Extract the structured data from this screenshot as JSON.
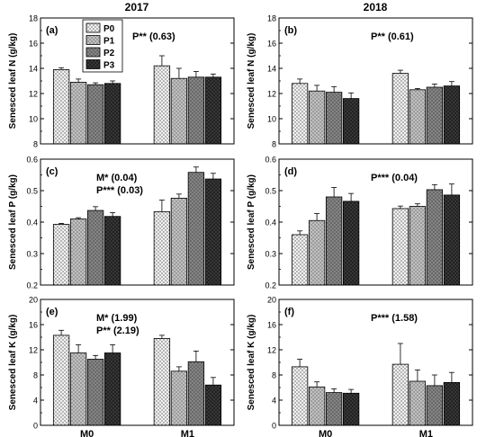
{
  "figure": {
    "column_titles": [
      "2017",
      "2018"
    ]
  },
  "legend": {
    "entries": [
      "P0",
      "P1",
      "P2",
      "P3"
    ]
  },
  "chart_data": [
    {
      "type": "bar",
      "panel": "(a)",
      "year": "2017",
      "ylabel": "Senesced leaf N (g/kg)",
      "ylim": [
        8,
        18
      ],
      "yticks": [
        "8",
        "10",
        "12",
        "14",
        "16",
        "18"
      ],
      "categories": [
        "M0",
        "M1"
      ],
      "show_category_labels": false,
      "series": [
        {
          "name": "P0",
          "values": [
            13.9,
            14.2
          ],
          "errors": [
            0.15,
            0.8
          ]
        },
        {
          "name": "P1",
          "values": [
            12.9,
            13.2
          ],
          "errors": [
            0.25,
            0.8
          ]
        },
        {
          "name": "P2",
          "values": [
            12.7,
            13.3
          ],
          "errors": [
            0.15,
            0.45
          ]
        },
        {
          "name": "P3",
          "values": [
            12.8,
            13.3
          ],
          "errors": [
            0.2,
            0.25
          ]
        }
      ],
      "annotations": [
        "P** (0.63)"
      ],
      "show_legend": true
    },
    {
      "type": "bar",
      "panel": "(b)",
      "year": "2018",
      "ylabel": "Senesced leaf N (g/kg)",
      "ylim": [
        8,
        18
      ],
      "yticks": [
        "8",
        "10",
        "12",
        "14",
        "16",
        "18"
      ],
      "categories": [
        "M0",
        "M1"
      ],
      "show_category_labels": false,
      "series": [
        {
          "name": "P0",
          "values": [
            12.8,
            13.6
          ],
          "errors": [
            0.35,
            0.25
          ]
        },
        {
          "name": "P1",
          "values": [
            12.2,
            12.3
          ],
          "errors": [
            0.45,
            0.1
          ]
        },
        {
          "name": "P2",
          "values": [
            12.1,
            12.5
          ],
          "errors": [
            0.45,
            0.25
          ]
        },
        {
          "name": "P3",
          "values": [
            11.6,
            12.6
          ],
          "errors": [
            0.45,
            0.35
          ]
        }
      ],
      "annotations": [
        "P** (0.61)"
      ],
      "show_legend": false
    },
    {
      "type": "bar",
      "panel": "(c)",
      "year": "2017",
      "ylabel": "Senesced leaf P (g/kg)",
      "ylim": [
        0.2,
        0.6
      ],
      "yticks": [
        "0.2",
        "0.3",
        "0.4",
        "0.5",
        "0.6"
      ],
      "categories": [
        "M0",
        "M1"
      ],
      "show_category_labels": false,
      "series": [
        {
          "name": "P0",
          "values": [
            0.393,
            0.433
          ],
          "errors": [
            0.003,
            0.037
          ]
        },
        {
          "name": "P1",
          "values": [
            0.41,
            0.476
          ],
          "errors": [
            0.004,
            0.013
          ]
        },
        {
          "name": "P2",
          "values": [
            0.437,
            0.558
          ],
          "errors": [
            0.012,
            0.017
          ]
        },
        {
          "name": "P3",
          "values": [
            0.418,
            0.537
          ],
          "errors": [
            0.012,
            0.018
          ]
        }
      ],
      "annotations": [
        "M* (0.04)",
        "P*** (0.03)"
      ],
      "show_legend": false
    },
    {
      "type": "bar",
      "panel": "(d)",
      "year": "2018",
      "ylabel": "Senesced leaf P (g/kg)",
      "ylim": [
        0.2,
        0.6
      ],
      "yticks": [
        "0.2",
        "0.3",
        "0.4",
        "0.5",
        "0.6"
      ],
      "categories": [
        "M0",
        "M1"
      ],
      "show_category_labels": false,
      "series": [
        {
          "name": "P0",
          "values": [
            0.36,
            0.443
          ],
          "errors": [
            0.012,
            0.008
          ]
        },
        {
          "name": "P1",
          "values": [
            0.405,
            0.45
          ],
          "errors": [
            0.022,
            0.008
          ]
        },
        {
          "name": "P2",
          "values": [
            0.48,
            0.503
          ],
          "errors": [
            0.03,
            0.016
          ]
        },
        {
          "name": "P3",
          "values": [
            0.466,
            0.486
          ],
          "errors": [
            0.025,
            0.035
          ]
        }
      ],
      "annotations": [
        "P*** (0.04)"
      ],
      "show_legend": false
    },
    {
      "type": "bar",
      "panel": "(e)",
      "year": "2017",
      "ylabel": "Senesced leaf K (g/kg)",
      "ylim": [
        0,
        20
      ],
      "yticks": [
        "0",
        "4",
        "8",
        "12",
        "16",
        "20"
      ],
      "categories": [
        "M0",
        "M1"
      ],
      "show_category_labels": true,
      "series": [
        {
          "name": "P0",
          "values": [
            14.3,
            13.8
          ],
          "errors": [
            0.8,
            0.5
          ]
        },
        {
          "name": "P1",
          "values": [
            11.5,
            8.6
          ],
          "errors": [
            1.3,
            0.7
          ]
        },
        {
          "name": "P2",
          "values": [
            10.5,
            10.1
          ],
          "errors": [
            0.6,
            1.7
          ]
        },
        {
          "name": "P3",
          "values": [
            11.5,
            6.4
          ],
          "errors": [
            1.3,
            1.2
          ]
        }
      ],
      "annotations": [
        "M* (1.99)",
        "P** (2.19)"
      ],
      "show_legend": false
    },
    {
      "type": "bar",
      "panel": "(f)",
      "year": "2018",
      "ylabel": "Senesced leaf K (g/kg)",
      "ylim": [
        0,
        20
      ],
      "yticks": [
        "0",
        "4",
        "8",
        "12",
        "16",
        "20"
      ],
      "categories": [
        "M0",
        "M1"
      ],
      "show_category_labels": true,
      "series": [
        {
          "name": "P0",
          "values": [
            9.3,
            9.7
          ],
          "errors": [
            1.2,
            3.3
          ]
        },
        {
          "name": "P1",
          "values": [
            6.1,
            7.0
          ],
          "errors": [
            0.8,
            1.8
          ]
        },
        {
          "name": "P2",
          "values": [
            5.2,
            6.3
          ],
          "errors": [
            0.6,
            1.7
          ]
        },
        {
          "name": "P3",
          "values": [
            5.1,
            6.8
          ],
          "errors": [
            0.6,
            1.6
          ]
        }
      ],
      "annotations": [
        "P*** (1.58)"
      ],
      "show_legend": false
    }
  ]
}
